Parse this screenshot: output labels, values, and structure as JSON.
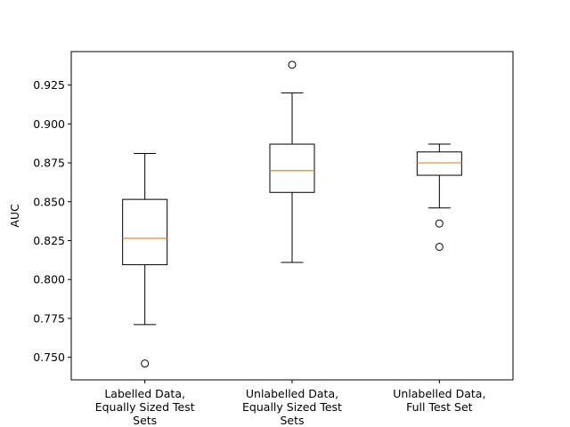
{
  "chart_data": {
    "type": "box",
    "title": "",
    "xlabel": "",
    "ylabel": "AUC",
    "ylim": [
      0.7355,
      0.9465
    ],
    "yticks": [
      0.75,
      0.775,
      0.8,
      0.825,
      0.85,
      0.875,
      0.9,
      0.925
    ],
    "ytick_labels": [
      "0.750",
      "0.775",
      "0.800",
      "0.825",
      "0.850",
      "0.875",
      "0.900",
      "0.925"
    ],
    "categories": [
      [
        "Labelled Data,",
        "Equally Sized Test",
        "Sets"
      ],
      [
        "Unlabelled Data,",
        "Equally Sized Test",
        "Sets"
      ],
      [
        "Unlabelled Data,",
        "Full Test Set"
      ]
    ],
    "series": [
      {
        "name": "Labelled Data, Equally Sized Test Sets",
        "whisker_low": 0.771,
        "q1": 0.8095,
        "median": 0.8265,
        "q3": 0.8515,
        "whisker_high": 0.881,
        "outliers": [
          0.746
        ]
      },
      {
        "name": "Unlabelled Data, Equally Sized Test Sets",
        "whisker_low": 0.811,
        "q1": 0.856,
        "median": 0.87,
        "q3": 0.887,
        "whisker_high": 0.92,
        "outliers": [
          0.938
        ]
      },
      {
        "name": "Unlabelled Data, Full Test Set",
        "whisker_low": 0.846,
        "q1": 0.867,
        "median": 0.875,
        "q3": 0.882,
        "whisker_high": 0.887,
        "outliers": [
          0.836,
          0.821
        ]
      }
    ],
    "colors": {
      "box": "#000000",
      "median": "#ff7f0e",
      "outlier": "#000000",
      "background": "#ffffff"
    },
    "grid": false,
    "legend": "none"
  }
}
